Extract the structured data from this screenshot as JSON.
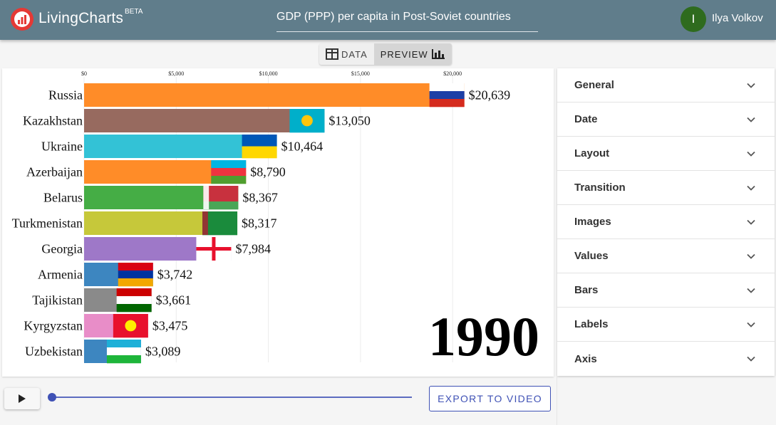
{
  "app": {
    "brand": "LivingCharts",
    "beta": "BETA",
    "chart_title_value": "GDP (PPP) per capita in Post-Soviet countries",
    "user_initial": "I",
    "user_name": "Ilya Volkov",
    "brand_color": "#607d8b"
  },
  "toggle": {
    "data_label": "DATA",
    "preview_label": "PREVIEW",
    "active": "preview"
  },
  "player": {
    "export_label": "EXPORT TO VIDEO",
    "progress": 0
  },
  "settings": {
    "sections": [
      "General",
      "Date",
      "Layout",
      "Transition",
      "Images",
      "Values",
      "Bars",
      "Labels",
      "Axis"
    ]
  },
  "chart_data": {
    "type": "bar",
    "orientation": "horizontal",
    "date_label": "1990",
    "xlim": [
      0,
      21000
    ],
    "xticks": [
      0,
      5000,
      10000,
      15000,
      20000
    ],
    "xtick_labels": [
      "$0",
      "$5,000",
      "$10,000",
      "$15,000",
      "$20,000"
    ],
    "grid": true,
    "categories": [
      "Russia",
      "Kazakhstan",
      "Ukraine",
      "Azerbaijan",
      "Belarus",
      "Turkmenistan",
      "Georgia",
      "Armenia",
      "Tajikistan",
      "Kyrgyzstan",
      "Uzbekistan"
    ],
    "values": [
      20639,
      13050,
      10464,
      8790,
      8367,
      8317,
      7984,
      3742,
      3661,
      3475,
      3089
    ],
    "value_labels": [
      "$20,639",
      "$13,050",
      "$10,464",
      "$8,790",
      "$8,367",
      "$8,317",
      "$7,984",
      "$3,742",
      "$3,661",
      "$3,475",
      "$3,089"
    ],
    "colors": [
      "#ff8c28",
      "#976a5f",
      "#33c2d6",
      "#ff8c28",
      "#45ad45",
      "#c6c83a",
      "#9e78c8",
      "#3d86c0",
      "#8a8a8a",
      "#e88dc8",
      "#3d86c0"
    ],
    "flags": [
      {
        "name": "russia-flag",
        "stripes": [
          "#ffffff",
          "#1c3fa6",
          "#d52b1e"
        ]
      },
      {
        "name": "kazakhstan-flag",
        "stripes": [
          "#00afca"
        ],
        "emblem": "#fec50c"
      },
      {
        "name": "ukraine-flag",
        "stripes": [
          "#0057b7",
          "#ffd700"
        ]
      },
      {
        "name": "azerbaijan-flag",
        "stripes": [
          "#00b5e2",
          "#ef3340",
          "#509e2f"
        ]
      },
      {
        "name": "belarus-flag",
        "stripes": [
          "#c8313e",
          "#c8313e",
          "#4aa657"
        ],
        "hoist": "#c8313e"
      },
      {
        "name": "turkmenistan-flag",
        "stripes": [
          "#1a8b3c"
        ],
        "hoist": "#c8313e"
      },
      {
        "name": "georgia-flag",
        "stripes": [
          "#ffffff"
        ],
        "cross": "#e8112d"
      },
      {
        "name": "armenia-flag",
        "stripes": [
          "#d90012",
          "#0033a0",
          "#f2a800"
        ]
      },
      {
        "name": "tajikistan-flag",
        "stripes": [
          "#cc0000",
          "#ffffff",
          "#006600"
        ]
      },
      {
        "name": "kyrgyzstan-flag",
        "stripes": [
          "#e8112d"
        ],
        "emblem": "#ffef00"
      },
      {
        "name": "uzbekistan-flag",
        "stripes": [
          "#1eb0d8",
          "#ffffff",
          "#1eb53a"
        ]
      }
    ]
  }
}
